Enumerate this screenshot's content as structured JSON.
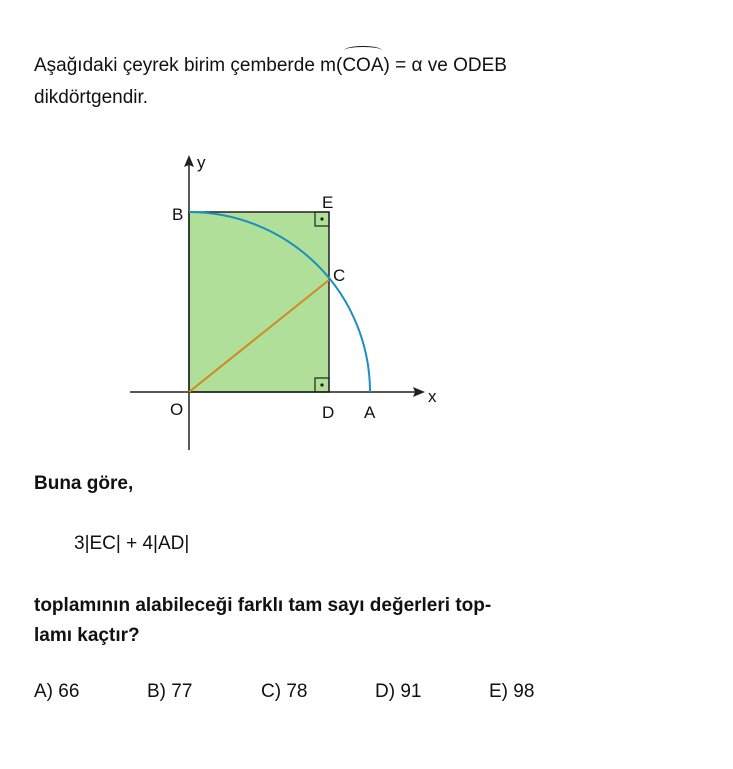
{
  "question": {
    "intro_pre": "Aşağıdaki çeyrek birim çemberde m(",
    "intro_arc": "COA",
    "intro_post": ") = α ve ODEB",
    "intro_line2": "dikdörtgendir.",
    "lead": "Buna göre,",
    "expression": "3|EC| + 4|AD|",
    "ask_line1": "toplamının alabileceği farklı tam sayı değerleri top-",
    "ask_line2": "lamı kaçtır?"
  },
  "figure": {
    "labels": {
      "y": "y",
      "x": "x",
      "B": "B",
      "E": "E",
      "C": "C",
      "O": "O",
      "D": "D",
      "A": "A"
    },
    "colors": {
      "fill": "#b0df9a",
      "arc": "#1a8fc0",
      "segment": "#d08a1e"
    }
  },
  "choices": [
    "A) 66",
    "B) 77",
    "C) 78",
    "D) 91",
    "E) 98"
  ]
}
